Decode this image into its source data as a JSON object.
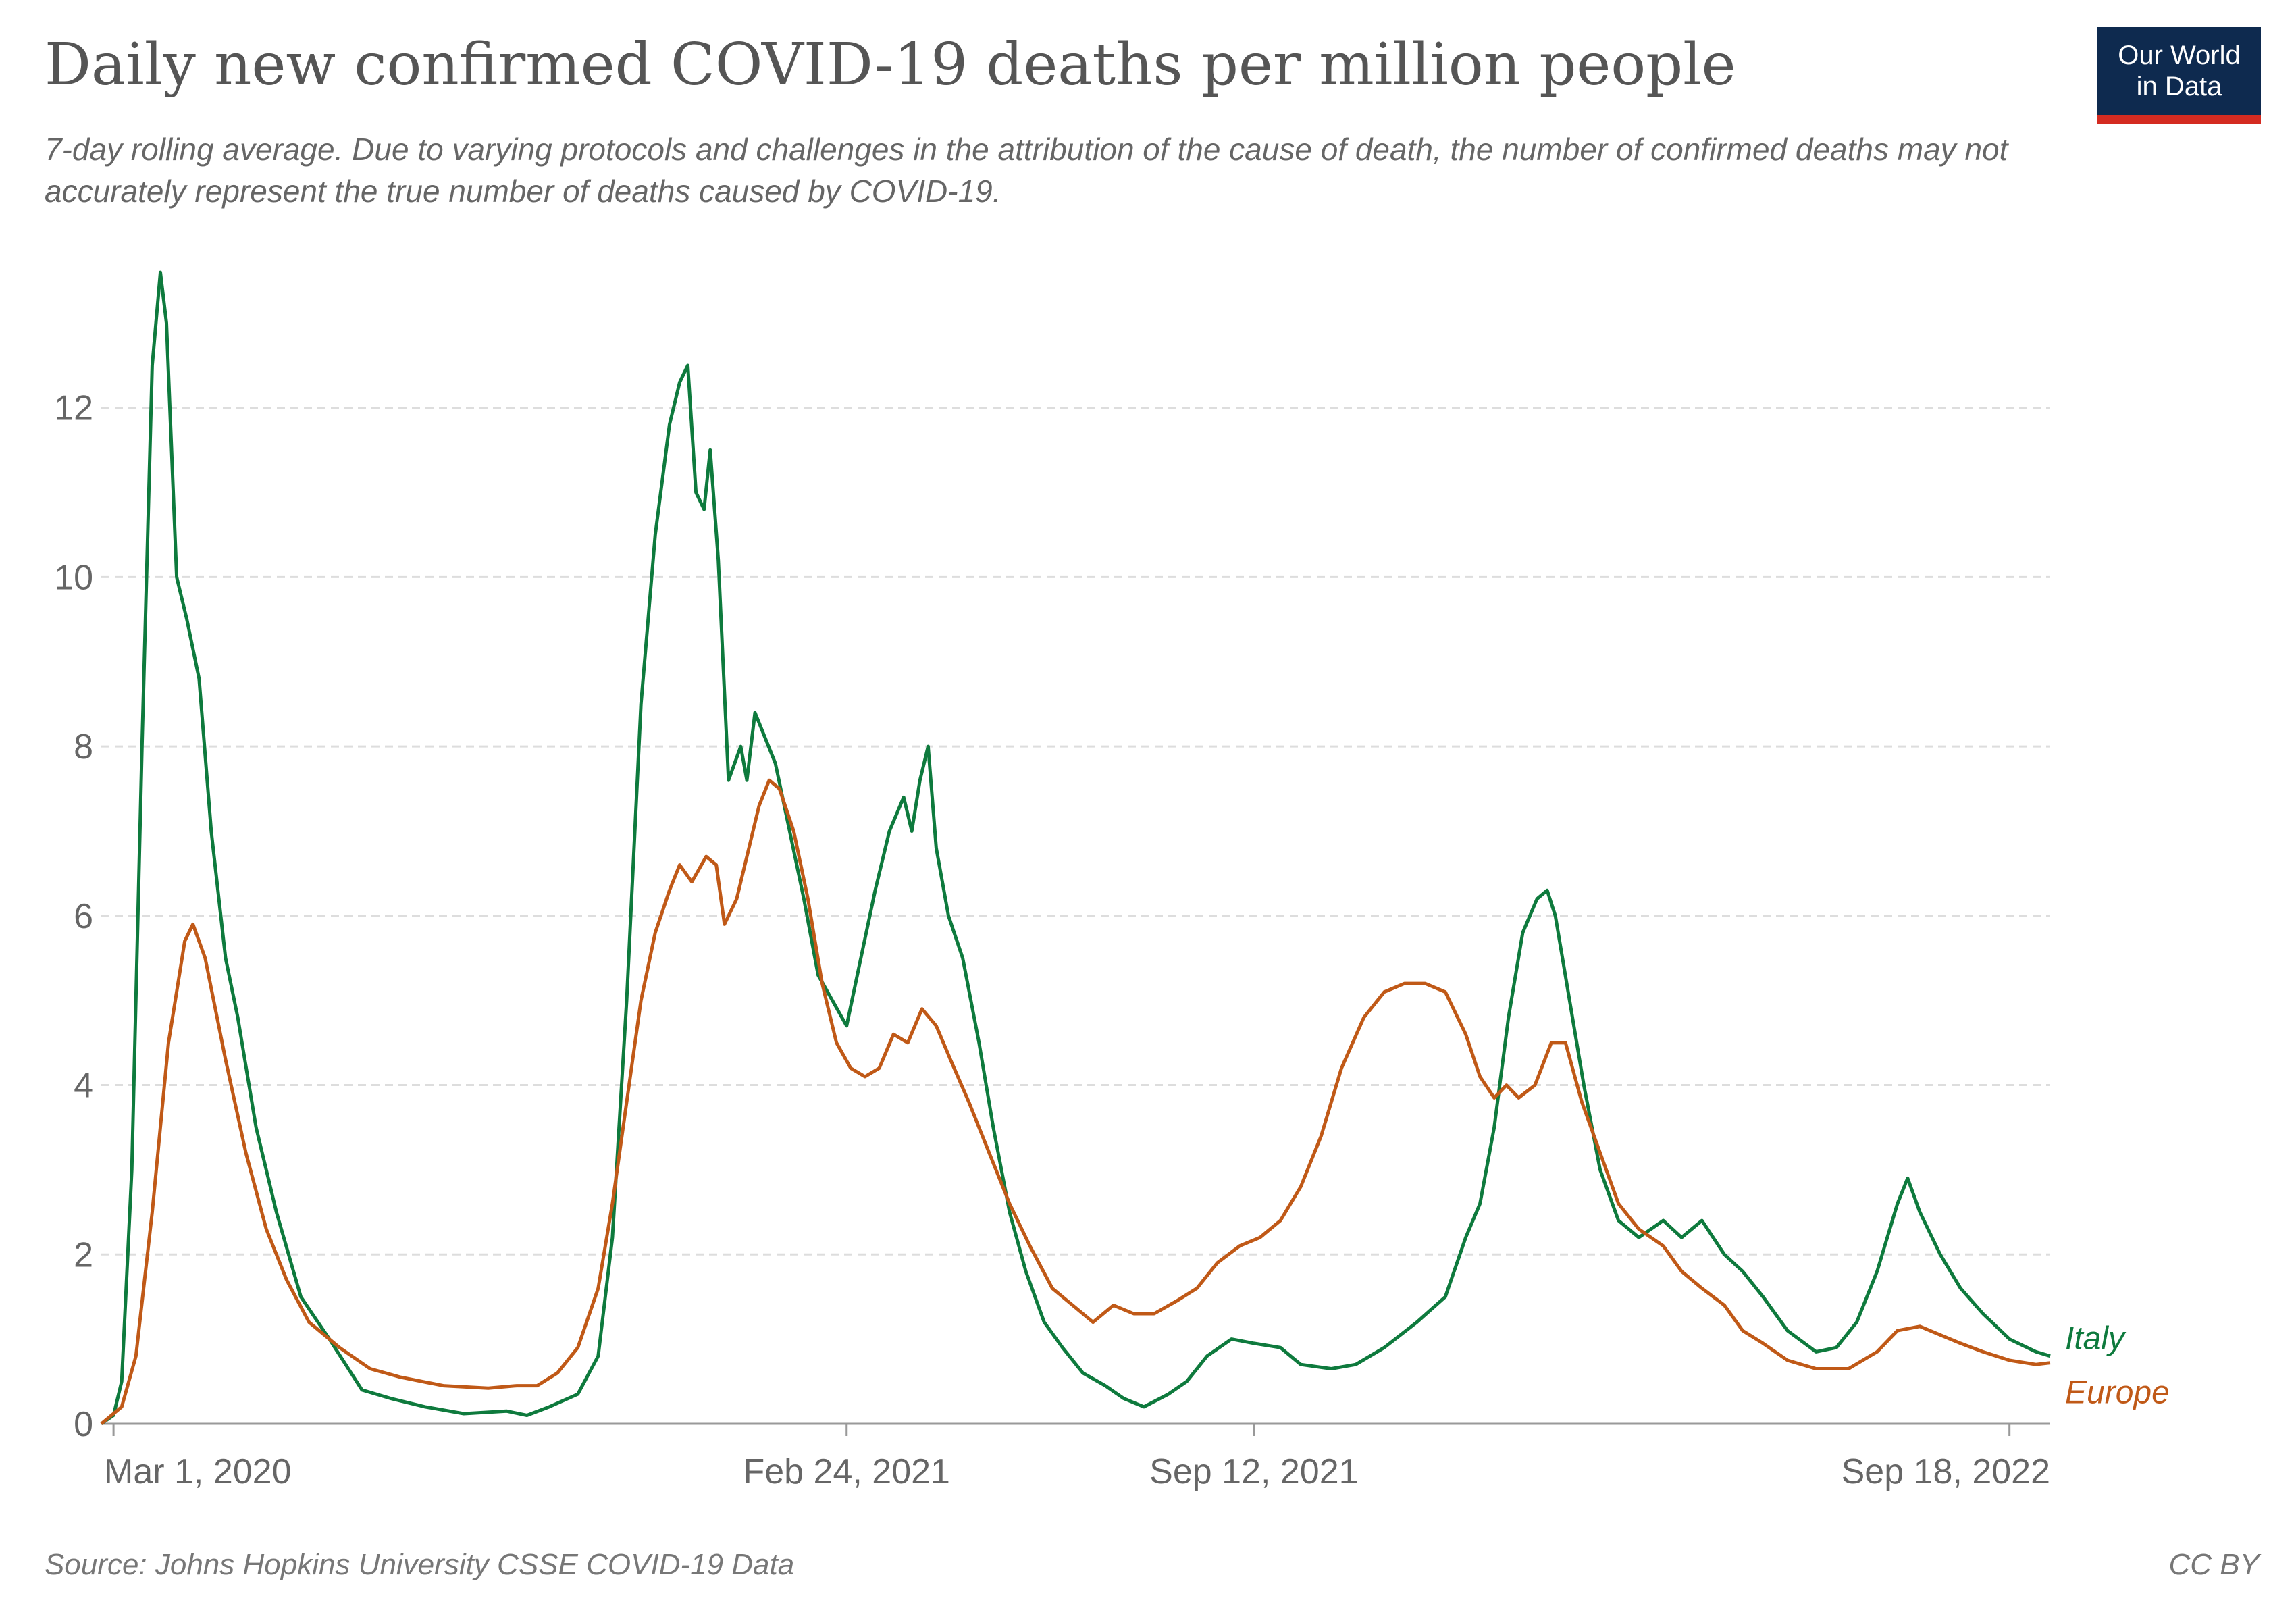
{
  "title": "Daily new confirmed COVID-19 deaths per million people",
  "subtitle": "7-day rolling average. Due to varying protocols and challenges in the attribution of the cause of death, the number of confirmed deaths may not accurately represent the true number of deaths caused by COVID-19.",
  "logo": {
    "line1": "Our World",
    "line2": "in Data",
    "background": "#0e2a4f",
    "accent": "#d42b21"
  },
  "source": "Source: Johns Hopkins University CSSE COVID-19 Data",
  "license": "CC BY",
  "chart_data": {
    "type": "line",
    "title": "Daily new confirmed COVID-19 deaths per million people",
    "xlabel": "",
    "ylabel": "",
    "x_start": "2020-02-24",
    "x_end": "2022-10-08",
    "x_ticks": [
      {
        "date": "2020-03-01",
        "label": "Mar 1, 2020"
      },
      {
        "date": "2021-02-24",
        "label": "Feb 24, 2021"
      },
      {
        "date": "2021-09-12",
        "label": "Sep 12, 2021"
      },
      {
        "date": "2022-09-18",
        "label": "Sep 18, 2022"
      }
    ],
    "ylim": [
      0,
      13.8
    ],
    "y_ticks": [
      0,
      2,
      4,
      6,
      8,
      10,
      12
    ],
    "grid": "horizontal dashed",
    "series": [
      {
        "name": "Italy",
        "color": "#0e7a3d",
        "points": [
          [
            "2020-02-24",
            0.0
          ],
          [
            "2020-03-01",
            0.1
          ],
          [
            "2020-03-05",
            0.5
          ],
          [
            "2020-03-10",
            3.0
          ],
          [
            "2020-03-15",
            8.0
          ],
          [
            "2020-03-20",
            12.5
          ],
          [
            "2020-03-24",
            13.6
          ],
          [
            "2020-03-27",
            13.0
          ],
          [
            "2020-04-01",
            10.0
          ],
          [
            "2020-04-06",
            9.5
          ],
          [
            "2020-04-12",
            8.8
          ],
          [
            "2020-04-18",
            7.0
          ],
          [
            "2020-04-25",
            5.5
          ],
          [
            "2020-05-01",
            4.8
          ],
          [
            "2020-05-10",
            3.5
          ],
          [
            "2020-05-20",
            2.5
          ],
          [
            "2020-06-01",
            1.5
          ],
          [
            "2020-06-15",
            1.0
          ],
          [
            "2020-07-01",
            0.4
          ],
          [
            "2020-07-15",
            0.3
          ],
          [
            "2020-08-01",
            0.2
          ],
          [
            "2020-08-20",
            0.12
          ],
          [
            "2020-09-10",
            0.15
          ],
          [
            "2020-09-20",
            0.1
          ],
          [
            "2020-10-01",
            0.2
          ],
          [
            "2020-10-15",
            0.35
          ],
          [
            "2020-10-25",
            0.8
          ],
          [
            "2020-11-01",
            2.2
          ],
          [
            "2020-11-08",
            5.0
          ],
          [
            "2020-11-15",
            8.5
          ],
          [
            "2020-11-22",
            10.5
          ],
          [
            "2020-11-29",
            11.8
          ],
          [
            "2020-12-04",
            12.3
          ],
          [
            "2020-12-08",
            12.5
          ],
          [
            "2020-12-12",
            11.0
          ],
          [
            "2020-12-16",
            10.8
          ],
          [
            "2020-12-19",
            11.5
          ],
          [
            "2020-12-23",
            10.2
          ],
          [
            "2020-12-28",
            7.6
          ],
          [
            "2021-01-03",
            8.0
          ],
          [
            "2021-01-06",
            7.6
          ],
          [
            "2021-01-10",
            8.4
          ],
          [
            "2021-01-15",
            8.1
          ],
          [
            "2021-01-20",
            7.8
          ],
          [
            "2021-01-27",
            7.0
          ],
          [
            "2021-02-03",
            6.2
          ],
          [
            "2021-02-10",
            5.3
          ],
          [
            "2021-02-17",
            5.0
          ],
          [
            "2021-02-24",
            4.7
          ],
          [
            "2021-03-03",
            5.5
          ],
          [
            "2021-03-10",
            6.3
          ],
          [
            "2021-03-17",
            7.0
          ],
          [
            "2021-03-24",
            7.4
          ],
          [
            "2021-03-28",
            7.0
          ],
          [
            "2021-04-01",
            7.6
          ],
          [
            "2021-04-05",
            8.0
          ],
          [
            "2021-04-09",
            6.8
          ],
          [
            "2021-04-15",
            6.0
          ],
          [
            "2021-04-22",
            5.5
          ],
          [
            "2021-04-30",
            4.5
          ],
          [
            "2021-05-07",
            3.5
          ],
          [
            "2021-05-15",
            2.5
          ],
          [
            "2021-05-23",
            1.8
          ],
          [
            "2021-06-01",
            1.2
          ],
          [
            "2021-06-10",
            0.9
          ],
          [
            "2021-06-20",
            0.6
          ],
          [
            "2021-07-01",
            0.45
          ],
          [
            "2021-07-10",
            0.3
          ],
          [
            "2021-07-20",
            0.2
          ],
          [
            "2021-08-01",
            0.35
          ],
          [
            "2021-08-10",
            0.5
          ],
          [
            "2021-08-20",
            0.8
          ],
          [
            "2021-09-01",
            1.0
          ],
          [
            "2021-09-12",
            0.95
          ],
          [
            "2021-09-25",
            0.9
          ],
          [
            "2021-10-05",
            0.7
          ],
          [
            "2021-10-20",
            0.65
          ],
          [
            "2021-11-01",
            0.7
          ],
          [
            "2021-11-15",
            0.9
          ],
          [
            "2021-12-01",
            1.2
          ],
          [
            "2021-12-15",
            1.5
          ],
          [
            "2021-12-25",
            2.2
          ],
          [
            "2022-01-01",
            2.6
          ],
          [
            "2022-01-08",
            3.5
          ],
          [
            "2022-01-15",
            4.8
          ],
          [
            "2022-01-22",
            5.8
          ],
          [
            "2022-01-29",
            6.2
          ],
          [
            "2022-02-03",
            6.3
          ],
          [
            "2022-02-07",
            6.0
          ],
          [
            "2022-02-14",
            5.0
          ],
          [
            "2022-02-21",
            4.0
          ],
          [
            "2022-03-01",
            3.0
          ],
          [
            "2022-03-10",
            2.4
          ],
          [
            "2022-03-20",
            2.2
          ],
          [
            "2022-04-01",
            2.4
          ],
          [
            "2022-04-10",
            2.2
          ],
          [
            "2022-04-20",
            2.4
          ],
          [
            "2022-05-01",
            2.0
          ],
          [
            "2022-05-10",
            1.8
          ],
          [
            "2022-05-20",
            1.5
          ],
          [
            "2022-06-01",
            1.1
          ],
          [
            "2022-06-15",
            0.85
          ],
          [
            "2022-06-25",
            0.9
          ],
          [
            "2022-07-05",
            1.2
          ],
          [
            "2022-07-15",
            1.8
          ],
          [
            "2022-07-25",
            2.6
          ],
          [
            "2022-07-30",
            2.9
          ],
          [
            "2022-08-05",
            2.5
          ],
          [
            "2022-08-15",
            2.0
          ],
          [
            "2022-08-25",
            1.6
          ],
          [
            "2022-09-05",
            1.3
          ],
          [
            "2022-09-18",
            1.0
          ],
          [
            "2022-10-01",
            0.85
          ],
          [
            "2022-10-08",
            0.8
          ]
        ]
      },
      {
        "name": "Europe",
        "color": "#c05917",
        "points": [
          [
            "2020-02-24",
            0.0
          ],
          [
            "2020-03-05",
            0.2
          ],
          [
            "2020-03-12",
            0.8
          ],
          [
            "2020-03-20",
            2.5
          ],
          [
            "2020-03-28",
            4.5
          ],
          [
            "2020-04-05",
            5.7
          ],
          [
            "2020-04-09",
            5.9
          ],
          [
            "2020-04-15",
            5.5
          ],
          [
            "2020-04-25",
            4.3
          ],
          [
            "2020-05-05",
            3.2
          ],
          [
            "2020-05-15",
            2.3
          ],
          [
            "2020-05-25",
            1.7
          ],
          [
            "2020-06-05",
            1.2
          ],
          [
            "2020-06-20",
            0.9
          ],
          [
            "2020-07-05",
            0.65
          ],
          [
            "2020-07-20",
            0.55
          ],
          [
            "2020-08-10",
            0.45
          ],
          [
            "2020-09-01",
            0.42
          ],
          [
            "2020-09-15",
            0.45
          ],
          [
            "2020-09-25",
            0.45
          ],
          [
            "2020-10-05",
            0.6
          ],
          [
            "2020-10-15",
            0.9
          ],
          [
            "2020-10-25",
            1.6
          ],
          [
            "2020-11-01",
            2.6
          ],
          [
            "2020-11-08",
            3.8
          ],
          [
            "2020-11-15",
            5.0
          ],
          [
            "2020-11-22",
            5.8
          ],
          [
            "2020-11-29",
            6.3
          ],
          [
            "2020-12-04",
            6.6
          ],
          [
            "2020-12-10",
            6.4
          ],
          [
            "2020-12-17",
            6.7
          ],
          [
            "2020-12-22",
            6.6
          ],
          [
            "2020-12-26",
            5.9
          ],
          [
            "2021-01-01",
            6.2
          ],
          [
            "2021-01-06",
            6.7
          ],
          [
            "2021-01-12",
            7.3
          ],
          [
            "2021-01-17",
            7.6
          ],
          [
            "2021-01-22",
            7.5
          ],
          [
            "2021-01-29",
            7.0
          ],
          [
            "2021-02-05",
            6.2
          ],
          [
            "2021-02-12",
            5.2
          ],
          [
            "2021-02-19",
            4.5
          ],
          [
            "2021-02-26",
            4.2
          ],
          [
            "2021-03-05",
            4.1
          ],
          [
            "2021-03-12",
            4.2
          ],
          [
            "2021-03-19",
            4.6
          ],
          [
            "2021-03-26",
            4.5
          ],
          [
            "2021-04-02",
            4.9
          ],
          [
            "2021-04-09",
            4.7
          ],
          [
            "2021-04-16",
            4.3
          ],
          [
            "2021-04-25",
            3.8
          ],
          [
            "2021-05-05",
            3.2
          ],
          [
            "2021-05-15",
            2.6
          ],
          [
            "2021-05-25",
            2.1
          ],
          [
            "2021-06-05",
            1.6
          ],
          [
            "2021-06-15",
            1.4
          ],
          [
            "2021-06-25",
            1.2
          ],
          [
            "2021-07-05",
            1.4
          ],
          [
            "2021-07-15",
            1.3
          ],
          [
            "2021-07-25",
            1.3
          ],
          [
            "2021-08-05",
            1.45
          ],
          [
            "2021-08-15",
            1.6
          ],
          [
            "2021-08-25",
            1.9
          ],
          [
            "2021-09-05",
            2.1
          ],
          [
            "2021-09-15",
            2.2
          ],
          [
            "2021-09-25",
            2.4
          ],
          [
            "2021-10-05",
            2.8
          ],
          [
            "2021-10-15",
            3.4
          ],
          [
            "2021-10-25",
            4.2
          ],
          [
            "2021-11-05",
            4.8
          ],
          [
            "2021-11-15",
            5.1
          ],
          [
            "2021-11-25",
            5.2
          ],
          [
            "2021-12-05",
            5.2
          ],
          [
            "2021-12-15",
            5.1
          ],
          [
            "2021-12-25",
            4.6
          ],
          [
            "2022-01-01",
            4.1
          ],
          [
            "2022-01-08",
            3.85
          ],
          [
            "2022-01-14",
            4.0
          ],
          [
            "2022-01-20",
            3.85
          ],
          [
            "2022-01-28",
            4.0
          ],
          [
            "2022-02-05",
            4.5
          ],
          [
            "2022-02-12",
            4.5
          ],
          [
            "2022-02-20",
            3.8
          ],
          [
            "2022-03-01",
            3.2
          ],
          [
            "2022-03-10",
            2.6
          ],
          [
            "2022-03-20",
            2.3
          ],
          [
            "2022-04-01",
            2.1
          ],
          [
            "2022-04-10",
            1.8
          ],
          [
            "2022-04-20",
            1.6
          ],
          [
            "2022-05-01",
            1.4
          ],
          [
            "2022-05-10",
            1.1
          ],
          [
            "2022-05-20",
            0.95
          ],
          [
            "2022-06-01",
            0.75
          ],
          [
            "2022-06-15",
            0.65
          ],
          [
            "2022-07-01",
            0.65
          ],
          [
            "2022-07-15",
            0.85
          ],
          [
            "2022-07-25",
            1.1
          ],
          [
            "2022-08-05",
            1.15
          ],
          [
            "2022-08-15",
            1.05
          ],
          [
            "2022-08-25",
            0.95
          ],
          [
            "2022-09-05",
            0.85
          ],
          [
            "2022-09-18",
            0.75
          ],
          [
            "2022-10-01",
            0.7
          ],
          [
            "2022-10-08",
            0.72
          ]
        ]
      }
    ]
  }
}
